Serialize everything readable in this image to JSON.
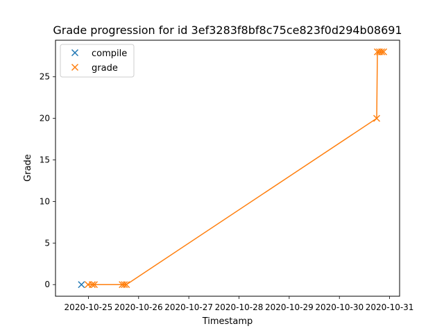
{
  "chart_data": {
    "type": "scatter",
    "title": "Grade progression for id 3ef3283f8bf8c75ce823f0d294b08691",
    "xlabel": "Timestamp",
    "ylabel": "Grade",
    "xlim": [
      "2020-10-24T08:16",
      "2020-10-31T04:47"
    ],
    "ylim": [
      -1.4,
      29.4
    ],
    "x_ticks": [
      "2020-10-25",
      "2020-10-26",
      "2020-10-27",
      "2020-10-28",
      "2020-10-29",
      "2020-10-30",
      "2020-10-31"
    ],
    "y_ticks": [
      0,
      5,
      10,
      15,
      20,
      25
    ],
    "grid": false,
    "legend_position": "upper-left",
    "colors": {
      "compile": "#1f77b4",
      "grade": "#ff7f0e"
    },
    "series": [
      {
        "name": "compile",
        "marker": "x",
        "line": false,
        "points": [
          {
            "x": "2020-10-24T20:40",
            "y": 0
          }
        ]
      },
      {
        "name": "grade",
        "marker": "x",
        "line": true,
        "points": [
          {
            "x": "2020-10-24T23:50",
            "y": 0
          },
          {
            "x": "2020-10-25T01:50",
            "y": 0
          },
          {
            "x": "2020-10-25T02:50",
            "y": 0
          },
          {
            "x": "2020-10-25T16:10",
            "y": 0
          },
          {
            "x": "2020-10-25T17:10",
            "y": 0
          },
          {
            "x": "2020-10-25T18:10",
            "y": 0
          },
          {
            "x": "2020-10-30T17:50",
            "y": 20
          },
          {
            "x": "2020-10-30T18:10",
            "y": 28
          },
          {
            "x": "2020-10-30T19:10",
            "y": 28
          },
          {
            "x": "2020-10-30T20:10",
            "y": 28
          },
          {
            "x": "2020-10-30T21:10",
            "y": 28
          }
        ]
      }
    ]
  }
}
